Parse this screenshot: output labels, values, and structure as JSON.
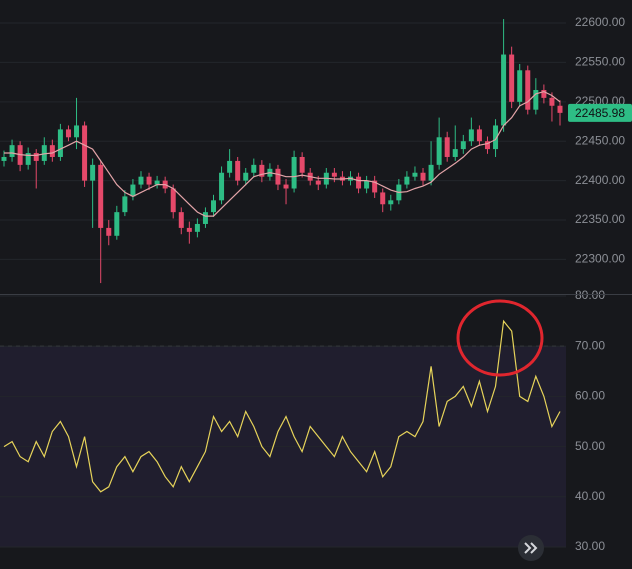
{
  "chart_data": [
    {
      "type": "candlestick",
      "up_color": "#2ebd85",
      "down_color": "#e5496a",
      "open": [
        22425,
        22430,
        22445,
        22420,
        22435,
        22425,
        22445,
        22430,
        22465,
        22455,
        22470,
        22400,
        22420,
        22340,
        22330,
        22360,
        22380,
        22395,
        22405,
        22395,
        22400,
        22390,
        22360,
        22340,
        22335,
        22345,
        22360,
        22375,
        22410,
        22425,
        22400,
        22410,
        22420,
        22405,
        22415,
        22395,
        22390,
        22430,
        22410,
        22400,
        22395,
        22410,
        22405,
        22400,
        22405,
        22390,
        22400,
        22385,
        22370,
        22375,
        22395,
        22405,
        22410,
        22400,
        22420,
        22455,
        22430,
        22440,
        22450,
        22465,
        22450,
        22440,
        22470,
        22560,
        22500,
        22540,
        22490,
        22515,
        22505,
        22495
      ],
      "high": [
        22438,
        22452,
        22450,
        22442,
        22440,
        22455,
        22452,
        22472,
        22470,
        22505,
        22475,
        22428,
        22425,
        22350,
        22368,
        22388,
        22402,
        22412,
        22410,
        22406,
        22405,
        22395,
        22366,
        22348,
        22352,
        22366,
        22382,
        22418,
        22440,
        22430,
        22416,
        22428,
        22426,
        22422,
        22420,
        22402,
        22438,
        22436,
        22416,
        22406,
        22416,
        22416,
        22412,
        22412,
        22410,
        22406,
        22406,
        22390,
        22382,
        22402,
        22412,
        22418,
        22416,
        22450,
        22480,
        22462,
        22470,
        22458,
        22480,
        22470,
        22456,
        22478,
        22605,
        22570,
        22548,
        22546,
        22530,
        22522,
        22512,
        22502
      ],
      "low": [
        22418,
        22424,
        22412,
        22414,
        22390,
        22420,
        22424,
        22425,
        22450,
        22440,
        22392,
        22340,
        22270,
        22318,
        22325,
        22355,
        22375,
        22390,
        22388,
        22390,
        22384,
        22352,
        22332,
        22320,
        22328,
        22340,
        22354,
        22370,
        22404,
        22394,
        22394,
        22404,
        22398,
        22400,
        22388,
        22370,
        22385,
        22404,
        22394,
        22388,
        22390,
        22398,
        22394,
        22394,
        22384,
        22384,
        22378,
        22360,
        22362,
        22370,
        22390,
        22400,
        22394,
        22394,
        22414,
        22424,
        22425,
        22434,
        22444,
        22444,
        22434,
        22430,
        22462,
        22492,
        22494,
        22484,
        22484,
        22498,
        22475,
        22470
      ],
      "close": [
        22430,
        22445,
        22420,
        22435,
        22425,
        22445,
        22430,
        22465,
        22455,
        22470,
        22400,
        22420,
        22340,
        22330,
        22360,
        22380,
        22395,
        22405,
        22395,
        22400,
        22390,
        22360,
        22340,
        22335,
        22345,
        22360,
        22375,
        22410,
        22425,
        22400,
        22410,
        22420,
        22405,
        22415,
        22395,
        22390,
        22430,
        22410,
        22400,
        22395,
        22410,
        22405,
        22400,
        22405,
        22390,
        22400,
        22385,
        22370,
        22375,
        22395,
        22405,
        22410,
        22400,
        22420,
        22455,
        22430,
        22440,
        22450,
        22465,
        22450,
        22440,
        22470,
        22560,
        22500,
        22540,
        22490,
        22515,
        22505,
        22495,
        22485.98
      ],
      "overlay": {
        "color": "#e3a4a8",
        "values": [
          22435,
          22435,
          22433,
          22432,
          22432,
          22434,
          22435,
          22440,
          22445,
          22450,
          22445,
          22440,
          22425,
          22410,
          22395,
          22385,
          22380,
          22385,
          22390,
          22395,
          22395,
          22390,
          22380,
          22370,
          22360,
          22355,
          22355,
          22365,
          22375,
          22385,
          22395,
          22405,
          22408,
          22410,
          22408,
          22405,
          22405,
          22407,
          22405,
          22403,
          22403,
          22402,
          22402,
          22403,
          22400,
          22400,
          22398,
          22393,
          22388,
          22385,
          22386,
          22390,
          22393,
          22398,
          22408,
          22415,
          22422,
          22430,
          22440,
          22445,
          22447,
          22452,
          22470,
          22480,
          22495,
          22500,
          22510,
          22513,
          22508,
          22500
        ]
      },
      "ylim": [
        22257.4,
        22629.2
      ],
      "yticks": [
        {
          "value": 22300,
          "label": "22300.00"
        },
        {
          "value": 22350,
          "label": "22350.00"
        },
        {
          "value": 22400,
          "label": "22400.00"
        },
        {
          "value": 22450,
          "label": "22450.00"
        },
        {
          "value": 22500,
          "label": "22500.00"
        },
        {
          "value": 22550,
          "label": "22550.00"
        },
        {
          "value": 22600,
          "label": "22600.00"
        }
      ],
      "grid": true
    },
    {
      "type": "line",
      "color": "#e6d35a",
      "values": [
        50,
        51,
        48,
        47,
        51,
        48,
        53,
        55,
        52,
        46,
        52,
        43,
        41,
        42,
        46,
        48,
        45,
        48,
        49,
        47,
        44,
        42,
        46,
        43,
        46,
        49,
        56,
        53,
        55,
        52,
        57,
        54,
        50,
        48,
        53,
        56,
        52,
        49,
        54,
        52,
        50,
        48,
        52,
        49,
        47,
        45,
        49,
        44,
        46,
        52,
        53,
        52,
        55,
        66,
        54,
        59,
        60,
        62,
        58,
        63,
        57,
        62,
        75,
        73,
        60,
        59,
        64,
        60,
        54,
        57
      ],
      "band": [
        30,
        70
      ],
      "band_color": "#201e2e",
      "ylim": [
        25.62,
        80.2
      ],
      "yticks": [
        {
          "value": 30,
          "label": "30.00"
        },
        {
          "value": 40,
          "label": "40.00"
        },
        {
          "value": 50,
          "label": "50.00"
        },
        {
          "value": 60,
          "label": "60.00"
        },
        {
          "value": 70,
          "label": "70.00"
        },
        {
          "value": 80,
          "label": "80.00"
        }
      ],
      "grid": true
    }
  ]
}
